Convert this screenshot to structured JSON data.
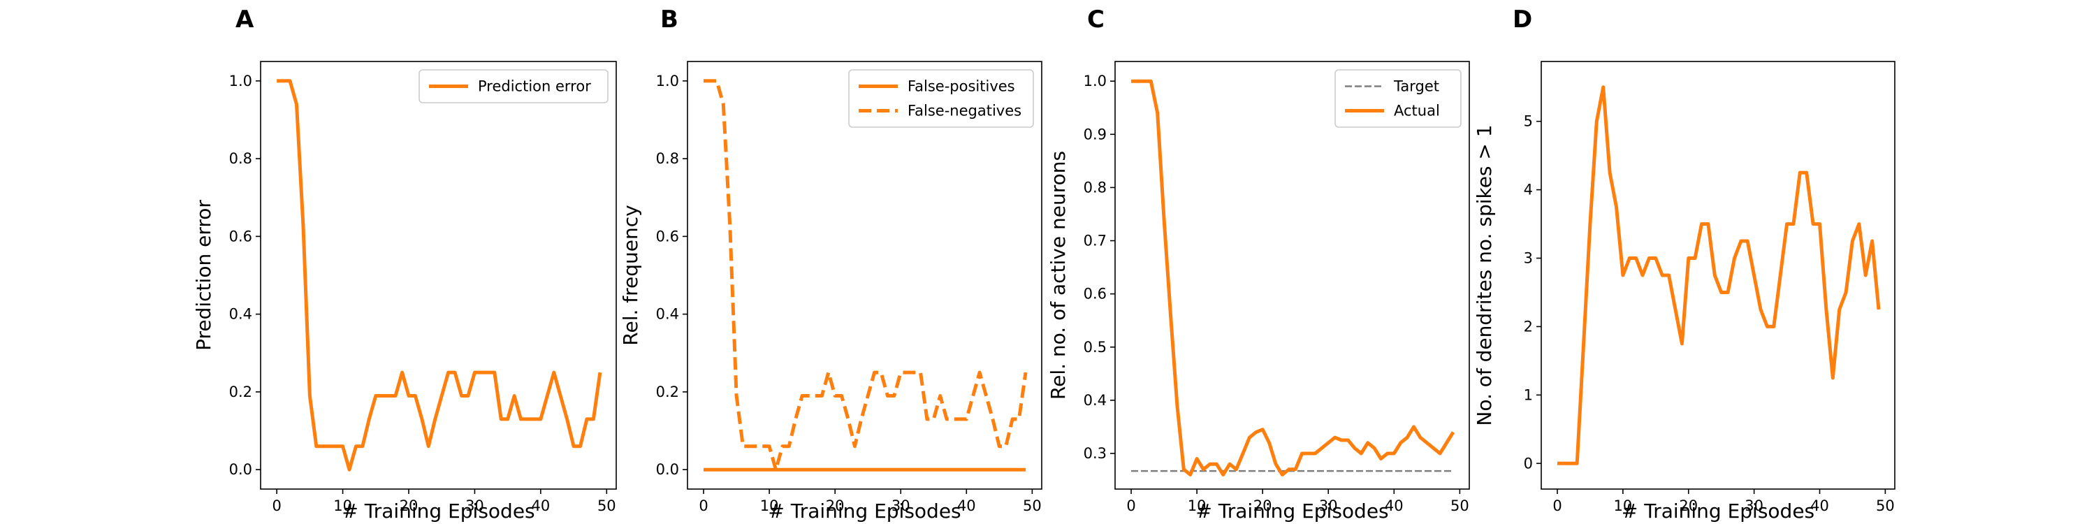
{
  "colors": {
    "series": "#ff7f0e",
    "target": "#7f7f7f",
    "axis": "#000000",
    "legend_border": "#cccccc"
  },
  "chart_data": [
    {
      "panel": "A",
      "type": "line",
      "xlabel": "# Training Episodes",
      "ylabel": "Prediction error",
      "xlim": [
        -2.45,
        51.45
      ],
      "ylim": [
        -0.05,
        1.05
      ],
      "xticks": [
        0,
        10,
        20,
        30,
        40,
        50
      ],
      "yticks": [
        0.0,
        0.2,
        0.4,
        0.6,
        0.8,
        1.0
      ],
      "ytick_labels": [
        "0.0",
        "0.2",
        "0.4",
        "0.6",
        "0.8",
        "1.0"
      ],
      "legend": "upper right",
      "series": [
        {
          "name": "Prediction error",
          "style": "solid",
          "x": [
            0,
            1,
            2,
            3,
            4,
            5,
            6,
            7,
            8,
            9,
            10,
            11,
            12,
            13,
            14,
            15,
            16,
            17,
            18,
            19,
            20,
            21,
            22,
            23,
            24,
            25,
            26,
            27,
            28,
            29,
            30,
            31,
            32,
            33,
            34,
            35,
            36,
            37,
            38,
            39,
            40,
            41,
            42,
            43,
            44,
            45,
            46,
            47,
            48,
            49
          ],
          "y": [
            1.0,
            1.0,
            1.0,
            0.94,
            0.63,
            0.19,
            0.06,
            0.06,
            0.06,
            0.06,
            0.06,
            0.0,
            0.06,
            0.06,
            0.13,
            0.19,
            0.19,
            0.19,
            0.19,
            0.25,
            0.19,
            0.19,
            0.13,
            0.06,
            0.13,
            0.19,
            0.25,
            0.25,
            0.19,
            0.19,
            0.25,
            0.25,
            0.25,
            0.25,
            0.13,
            0.13,
            0.19,
            0.13,
            0.13,
            0.13,
            0.13,
            0.19,
            0.25,
            0.19,
            0.13,
            0.06,
            0.06,
            0.13,
            0.13,
            0.25
          ]
        }
      ]
    },
    {
      "panel": "B",
      "type": "line",
      "xlabel": "# Training Episodes",
      "ylabel": "Rel. frequency",
      "xlim": [
        -2.45,
        51.45
      ],
      "ylim": [
        -0.05,
        1.05
      ],
      "xticks": [
        0,
        10,
        20,
        30,
        40,
        50
      ],
      "yticks": [
        0.0,
        0.2,
        0.4,
        0.6,
        0.8,
        1.0
      ],
      "ytick_labels": [
        "0.0",
        "0.2",
        "0.4",
        "0.6",
        "0.8",
        "1.0"
      ],
      "legend": "upper right",
      "series": [
        {
          "name": "False-positives",
          "style": "solid",
          "x": [
            0,
            49
          ],
          "y": [
            0.0,
            0.0
          ]
        },
        {
          "name": "False-negatives",
          "style": "dashed",
          "x": [
            0,
            1,
            2,
            3,
            4,
            5,
            6,
            7,
            8,
            9,
            10,
            11,
            12,
            13,
            14,
            15,
            16,
            17,
            18,
            19,
            20,
            21,
            22,
            23,
            24,
            25,
            26,
            27,
            28,
            29,
            30,
            31,
            32,
            33,
            34,
            35,
            36,
            37,
            38,
            39,
            40,
            41,
            42,
            43,
            44,
            45,
            46,
            47,
            48,
            49
          ],
          "y": [
            1.0,
            1.0,
            1.0,
            0.94,
            0.63,
            0.19,
            0.06,
            0.06,
            0.06,
            0.06,
            0.06,
            0.0,
            0.06,
            0.06,
            0.13,
            0.19,
            0.19,
            0.19,
            0.19,
            0.25,
            0.19,
            0.19,
            0.13,
            0.06,
            0.13,
            0.19,
            0.25,
            0.25,
            0.19,
            0.19,
            0.25,
            0.25,
            0.25,
            0.25,
            0.13,
            0.13,
            0.19,
            0.13,
            0.13,
            0.13,
            0.13,
            0.19,
            0.25,
            0.19,
            0.13,
            0.06,
            0.06,
            0.13,
            0.13,
            0.25
          ]
        }
      ]
    },
    {
      "panel": "C",
      "type": "line",
      "xlabel": "# Training Episodes",
      "ylabel": "Rel. no. of active neurons",
      "xlim": [
        -2.45,
        51.45
      ],
      "ylim": [
        0.233,
        1.037
      ],
      "xticks": [
        0,
        10,
        20,
        30,
        40,
        50
      ],
      "yticks": [
        0.3,
        0.4,
        0.5,
        0.6,
        0.7,
        0.8,
        0.9,
        1.0
      ],
      "ytick_labels": [
        "0.3",
        "0.4",
        "0.5",
        "0.6",
        "0.7",
        "0.8",
        "0.9",
        "1.0"
      ],
      "legend": "upper right",
      "series": [
        {
          "name": "Target",
          "style": "target-dashed",
          "x": [
            0,
            49
          ],
          "y": [
            0.267,
            0.267
          ]
        },
        {
          "name": "Actual",
          "style": "solid",
          "x": [
            0,
            1,
            2,
            3,
            4,
            5,
            6,
            7,
            8,
            9,
            10,
            11,
            12,
            13,
            14,
            15,
            16,
            17,
            18,
            19,
            20,
            21,
            22,
            23,
            24,
            25,
            26,
            27,
            28,
            29,
            30,
            31,
            32,
            33,
            34,
            35,
            36,
            37,
            38,
            39,
            40,
            41,
            42,
            43,
            44,
            45,
            46,
            47,
            48,
            49
          ],
          "y": [
            1.0,
            1.0,
            1.0,
            1.0,
            0.94,
            0.74,
            0.56,
            0.39,
            0.27,
            0.26,
            0.29,
            0.27,
            0.28,
            0.28,
            0.26,
            0.28,
            0.27,
            0.3,
            0.33,
            0.34,
            0.345,
            0.32,
            0.28,
            0.26,
            0.27,
            0.27,
            0.3,
            0.3,
            0.3,
            0.31,
            0.32,
            0.33,
            0.325,
            0.325,
            0.31,
            0.3,
            0.32,
            0.31,
            0.29,
            0.3,
            0.3,
            0.32,
            0.33,
            0.35,
            0.33,
            0.32,
            0.31,
            0.3,
            0.32,
            0.34
          ]
        }
      ]
    },
    {
      "panel": "D",
      "type": "line",
      "xlabel": "# Training Episodes",
      "ylabel": "No. of dendrites no. spikes > 1",
      "xlim": [
        -2.45,
        51.45
      ],
      "ylim": [
        -0.375,
        5.875
      ],
      "xticks": [
        0,
        10,
        20,
        30,
        40,
        50
      ],
      "yticks": [
        0,
        1,
        2,
        3,
        4,
        5
      ],
      "ytick_labels": [
        "0",
        "1",
        "2",
        "3",
        "4",
        "5"
      ],
      "legend": "none",
      "series": [
        {
          "style": "solid",
          "x": [
            0,
            1,
            2,
            3,
            4,
            5,
            6,
            7,
            8,
            9,
            10,
            11,
            12,
            13,
            14,
            15,
            16,
            17,
            18,
            19,
            20,
            21,
            22,
            23,
            24,
            25,
            26,
            27,
            28,
            29,
            30,
            31,
            32,
            33,
            34,
            35,
            36,
            37,
            38,
            39,
            40,
            41,
            42,
            43,
            44,
            45,
            46,
            47,
            48,
            49
          ],
          "y": [
            0.0,
            0.0,
            0.0,
            0.0,
            1.75,
            3.5,
            5.0,
            5.5,
            4.25,
            3.75,
            2.75,
            3.0,
            3.0,
            2.75,
            3.0,
            3.0,
            2.75,
            2.75,
            2.25,
            1.75,
            3.0,
            3.0,
            3.5,
            3.5,
            2.75,
            2.5,
            2.5,
            3.0,
            3.25,
            3.25,
            2.75,
            2.25,
            2.0,
            2.0,
            2.75,
            3.5,
            3.5,
            4.25,
            4.25,
            3.5,
            3.5,
            2.25,
            1.25,
            2.25,
            2.5,
            3.25,
            3.5,
            2.75,
            3.25,
            2.25
          ]
        }
      ]
    }
  ]
}
